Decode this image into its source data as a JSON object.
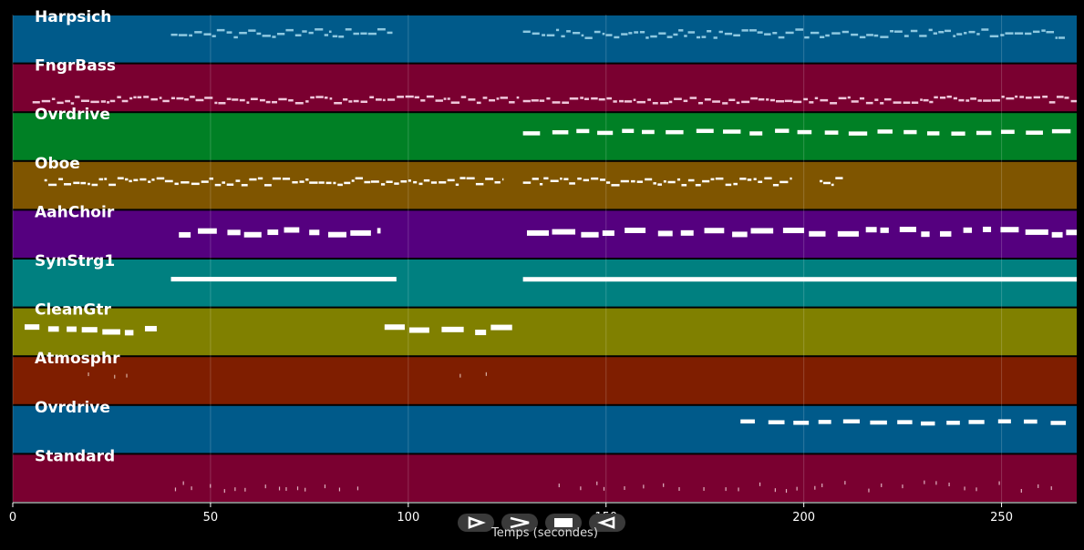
{
  "chart_data": {
    "type": "piano-roll",
    "xlabel": "Temps (secondes)",
    "xlim": [
      0,
      269
    ],
    "xticks": [
      0,
      50,
      100,
      150,
      200,
      250
    ],
    "grid": true,
    "tracks": [
      {
        "name": "Harpsich",
        "color": "#005a8a",
        "note_color": "#8ec8e0",
        "style": "dense",
        "segments": [
          [
            40,
            96
          ],
          [
            129,
            266
          ]
        ],
        "pitch_range": [
          0.3,
          0.48
        ]
      },
      {
        "name": "FngrBass",
        "color": "#7a0030",
        "note_color": "#f0c8dc",
        "style": "dense",
        "segments": [
          [
            5,
            128
          ],
          [
            129,
            269
          ]
        ],
        "pitch_range": [
          0.68,
          0.82
        ]
      },
      {
        "name": "Ovrdrive",
        "color": "#008025",
        "note_color": "#ffffff",
        "style": "dashed",
        "segments": [
          [
            129,
            268
          ]
        ],
        "pitch_range": [
          0.38,
          0.44
        ]
      },
      {
        "name": "Oboe",
        "color": "#7f5500",
        "note_color": "#ffffff",
        "style": "dense",
        "segments": [
          [
            8,
            124
          ],
          [
            129,
            197
          ],
          [
            204,
            210
          ]
        ],
        "pitch_range": [
          0.35,
          0.5
        ]
      },
      {
        "name": "AahChoir",
        "color": "#55007f",
        "note_color": "#ffffff",
        "style": "blocks",
        "segments": [
          [
            42,
            93
          ],
          [
            130,
            269
          ]
        ],
        "pitch_range": [
          0.4,
          0.52
        ]
      },
      {
        "name": "SynStrg1",
        "color": "#008080",
        "note_color": "#ffffff",
        "style": "solid",
        "segments": [
          [
            40,
            97
          ],
          [
            129,
            269
          ]
        ],
        "pitch_range": [
          0.38,
          0.48
        ]
      },
      {
        "name": "CleanGtr",
        "color": "#808000",
        "note_color": "#ffffff",
        "style": "blocks",
        "segments": [
          [
            3,
            38
          ],
          [
            94,
            128
          ]
        ],
        "pitch_range": [
          0.4,
          0.52
        ]
      },
      {
        "name": "Atmosphr",
        "color": "#7f1e00",
        "note_color": "#d8b0a0",
        "style": "sparse",
        "segments": [
          [
            19,
            34
          ],
          [
            113,
            123
          ]
        ],
        "pitch_range": [
          0.34,
          0.42
        ]
      },
      {
        "name": "Ovrdrive",
        "color": "#005a8a",
        "note_color": "#ffffff",
        "style": "dashed",
        "segments": [
          [
            184,
            268
          ]
        ],
        "pitch_range": [
          0.33,
          0.38
        ]
      },
      {
        "name": "Standard",
        "color": "#7a0030",
        "note_color": "#e0b0c0",
        "style": "sparse",
        "segments": [
          [
            41,
            90
          ],
          [
            138,
            264
          ]
        ],
        "pitch_range": [
          0.58,
          0.76
        ]
      }
    ]
  },
  "controls": [
    {
      "name": "play-button",
      "icon": "play-icon"
    },
    {
      "name": "forward-button",
      "icon": "forward-icon"
    },
    {
      "name": "stop-button",
      "icon": "stop-icon"
    },
    {
      "name": "rewind-button",
      "icon": "rewind-icon"
    }
  ]
}
